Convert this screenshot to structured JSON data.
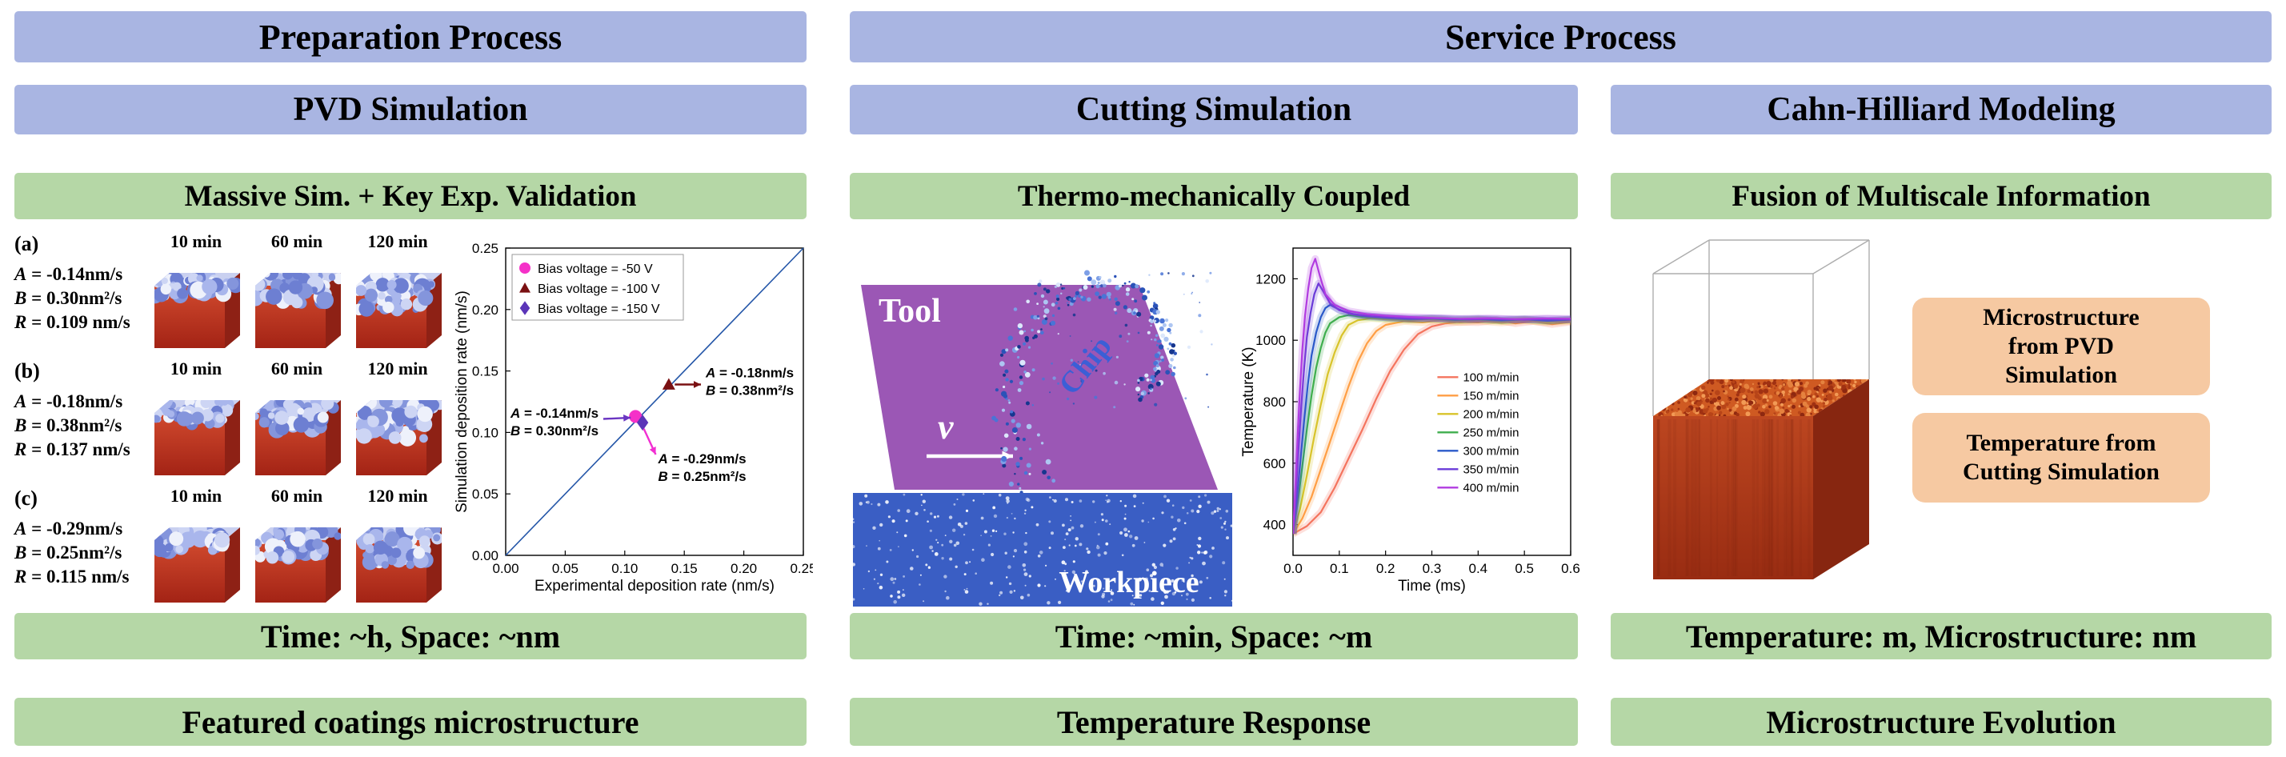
{
  "colors": {
    "blue_banner": "#a9b5e2",
    "green_banner": "#b5d7a6",
    "orange_box": "#f6c9a2",
    "tool_purple": "#9b57b5",
    "workpiece_blue": "#3a5ec4",
    "cube_red": "#c23524",
    "cahn_orange": "#cf5a22"
  },
  "headers": {
    "preparation": "Preparation Process",
    "service": "Service Process"
  },
  "columns": {
    "pvd": {
      "title": "PVD Simulation",
      "subtitle": "Massive Sim. + Key Exp. Validation",
      "scale_note": "Time: ~h, Space: ~nm",
      "footer": "Featured coatings microstructure",
      "panels": [
        {
          "label": "(a)",
          "params": [
            "A = -0.14nm/s",
            "B = 0.30nm²/s",
            "R = 0.109 nm/s"
          ],
          "times": [
            "10 min",
            "60 min",
            "120 min"
          ]
        },
        {
          "label": "(b)",
          "params": [
            "A = -0.18nm/s",
            "B = 0.38nm²/s",
            "R = 0.137 nm/s"
          ],
          "times": [
            "10 min",
            "60 min",
            "120 min"
          ]
        },
        {
          "label": "(c)",
          "params": [
            "A = -0.29nm/s",
            "B = 0.25nm²/s",
            "R = 0.115 nm/s"
          ],
          "times": [
            "10 min",
            "60 min",
            "120 min"
          ]
        }
      ]
    },
    "cutting": {
      "title": "Cutting Simulation",
      "subtitle": "Thermo-mechanically Coupled",
      "scale_note": "Time: ~min, Space: ~m",
      "footer": "Temperature Response",
      "labels": {
        "tool": "Tool",
        "velocity": "v",
        "chip": "Chip",
        "workpiece": "Workpiece"
      }
    },
    "cahn": {
      "title": "Cahn-Hilliard Modeling",
      "subtitle": "Fusion of Multiscale Information",
      "scale_note": "Temperature: m, Microstructure: nm",
      "footer": "Microstructure Evolution",
      "info_boxes": [
        {
          "lines": [
            "Microstructure",
            "from PVD",
            "Simulation"
          ]
        },
        {
          "lines": [
            "Temperature from",
            "Cutting Simulation"
          ]
        }
      ]
    }
  },
  "chart_data": [
    {
      "id": "deposition_rate_validation",
      "type": "scatter",
      "xlabel": "Experimental deposition rate (nm/s)",
      "ylabel": "Simulation deposition rate (nm/s)",
      "xlim": [
        0,
        0.25
      ],
      "ylim": [
        0,
        0.25
      ],
      "xticks": [
        0,
        0.05,
        0.1,
        0.15,
        0.2,
        0.25
      ],
      "yticks": [
        0,
        0.05,
        0.1,
        0.15,
        0.2,
        0.25
      ],
      "grid": false,
      "identity_line": {
        "color": "#2456a8"
      },
      "legend": {
        "position": "top-left",
        "border": true,
        "entries": [
          {
            "label": "Bias voltage = -50 V",
            "marker": "circle",
            "color": "#f531c8"
          },
          {
            "label": "Bias voltage = -100 V",
            "marker": "triangle",
            "color": "#7a1012"
          },
          {
            "label": "Bias voltage = -150 V",
            "marker": "diamond",
            "color": "#5b35b8"
          }
        ]
      },
      "series": [
        {
          "name": "Bias voltage = -50 V",
          "marker": "circle",
          "color": "#f531c8",
          "points": [
            [
              0.109,
              0.113
            ]
          ]
        },
        {
          "name": "Bias voltage = -100 V",
          "marker": "triangle",
          "color": "#7a1012",
          "points": [
            [
              0.137,
              0.139
            ]
          ]
        },
        {
          "name": "Bias voltage = -150 V",
          "marker": "diamond",
          "color": "#5b35b8",
          "points": [
            [
              0.115,
              0.108
            ]
          ]
        }
      ],
      "annotations": [
        {
          "lines": [
            "A = -0.14nm/s",
            "B = 0.30nm²/s"
          ],
          "text_xy": [
            0.004,
            0.112
          ],
          "anchor": "start",
          "arrow": {
            "from": [
              0.082,
              0.111
            ],
            "to": [
              0.105,
              0.112
            ],
            "color": "#6a35c2"
          }
        },
        {
          "lines": [
            "A = -0.18nm/s",
            "B = 0.38nm²/s"
          ],
          "text_xy": [
            0.168,
            0.145
          ],
          "anchor": "start",
          "arrow": {
            "from": [
              0.142,
              0.139
            ],
            "to": [
              0.164,
              0.139
            ],
            "color": "#7a1012"
          }
        },
        {
          "lines": [
            "A = -0.29nm/s",
            "B = 0.25nm²/s"
          ],
          "text_xy": [
            0.128,
            0.075
          ],
          "anchor": "start",
          "arrow": {
            "from": [
              0.116,
              0.103
            ],
            "to": [
              0.126,
              0.082
            ],
            "color": "#f12fd2"
          }
        }
      ]
    },
    {
      "id": "temperature_response",
      "type": "line",
      "xlabel": "Time (ms)",
      "ylabel": "Temperature (K)",
      "xlim": [
        0,
        0.6
      ],
      "ylim": [
        300,
        1300
      ],
      "xticks": [
        0,
        0.1,
        0.2,
        0.3,
        0.4,
        0.5,
        0.6
      ],
      "yticks": [
        400,
        600,
        800,
        1000,
        1200
      ],
      "legend": {
        "position": "right-center",
        "border": false,
        "entries": [
          {
            "label": "100 m/min",
            "color": "#f4745e"
          },
          {
            "label": "150 m/min",
            "color": "#ff9e44"
          },
          {
            "label": "200 m/min",
            "color": "#d8c32a"
          },
          {
            "label": "250 m/min",
            "color": "#3fae4e"
          },
          {
            "label": "300 m/min",
            "color": "#2a59c9"
          },
          {
            "label": "350 m/min",
            "color": "#6a3bd8"
          },
          {
            "label": "400 m/min",
            "color": "#b13be0"
          }
        ]
      },
      "series": [
        {
          "name": "100 m/min",
          "color": "#f4745e",
          "points": [
            [
              0,
              370
            ],
            [
              0.03,
              395
            ],
            [
              0.06,
              440
            ],
            [
              0.09,
              520
            ],
            [
              0.12,
              615
            ],
            [
              0.15,
              710
            ],
            [
              0.18,
              810
            ],
            [
              0.21,
              900
            ],
            [
              0.24,
              970
            ],
            [
              0.27,
              1020
            ],
            [
              0.3,
              1045
            ],
            [
              0.33,
              1055
            ],
            [
              0.36,
              1060
            ],
            [
              0.4,
              1058
            ],
            [
              0.44,
              1066
            ],
            [
              0.48,
              1055
            ],
            [
              0.52,
              1062
            ],
            [
              0.56,
              1052
            ],
            [
              0.6,
              1060
            ]
          ]
        },
        {
          "name": "150 m/min",
          "color": "#ff9e44",
          "points": [
            [
              0,
              370
            ],
            [
              0.02,
              420
            ],
            [
              0.04,
              490
            ],
            [
              0.06,
              580
            ],
            [
              0.08,
              670
            ],
            [
              0.1,
              760
            ],
            [
              0.12,
              850
            ],
            [
              0.14,
              930
            ],
            [
              0.16,
              990
            ],
            [
              0.18,
              1030
            ],
            [
              0.2,
              1050
            ],
            [
              0.24,
              1062
            ],
            [
              0.28,
              1058
            ],
            [
              0.32,
              1065
            ],
            [
              0.36,
              1058
            ],
            [
              0.4,
              1063
            ],
            [
              0.45,
              1057
            ],
            [
              0.5,
              1064
            ],
            [
              0.55,
              1058
            ],
            [
              0.6,
              1062
            ]
          ]
        },
        {
          "name": "200 m/min",
          "color": "#d8c32a",
          "points": [
            [
              0,
              370
            ],
            [
              0.015,
              450
            ],
            [
              0.03,
              560
            ],
            [
              0.045,
              680
            ],
            [
              0.06,
              790
            ],
            [
              0.075,
              890
            ],
            [
              0.09,
              960
            ],
            [
              0.105,
              1015
            ],
            [
              0.12,
              1050
            ],
            [
              0.14,
              1065
            ],
            [
              0.17,
              1072
            ],
            [
              0.2,
              1068
            ],
            [
              0.25,
              1065
            ],
            [
              0.3,
              1068
            ],
            [
              0.35,
              1063
            ],
            [
              0.4,
              1067
            ],
            [
              0.45,
              1062
            ],
            [
              0.5,
              1066
            ],
            [
              0.55,
              1061
            ],
            [
              0.6,
              1065
            ]
          ]
        },
        {
          "name": "250 m/min",
          "color": "#3fae4e",
          "points": [
            [
              0,
              370
            ],
            [
              0.01,
              470
            ],
            [
              0.02,
              590
            ],
            [
              0.03,
              710
            ],
            [
              0.04,
              820
            ],
            [
              0.05,
              910
            ],
            [
              0.06,
              975
            ],
            [
              0.07,
              1025
            ],
            [
              0.08,
              1055
            ],
            [
              0.1,
              1075
            ],
            [
              0.12,
              1082
            ],
            [
              0.15,
              1076
            ],
            [
              0.2,
              1072
            ],
            [
              0.25,
              1068
            ],
            [
              0.3,
              1070
            ],
            [
              0.35,
              1066
            ],
            [
              0.4,
              1068
            ],
            [
              0.45,
              1064
            ],
            [
              0.5,
              1068
            ],
            [
              0.55,
              1063
            ],
            [
              0.6,
              1067
            ]
          ]
        },
        {
          "name": "300 m/min",
          "color": "#2a59c9",
          "points": [
            [
              0,
              370
            ],
            [
              0.008,
              480
            ],
            [
              0.016,
              610
            ],
            [
              0.024,
              740
            ],
            [
              0.032,
              855
            ],
            [
              0.04,
              950
            ],
            [
              0.05,
              1025
            ],
            [
              0.06,
              1075
            ],
            [
              0.07,
              1105
            ],
            [
              0.08,
              1115
            ],
            [
              0.1,
              1100
            ],
            [
              0.12,
              1088
            ],
            [
              0.15,
              1080
            ],
            [
              0.2,
              1074
            ],
            [
              0.25,
              1070
            ],
            [
              0.3,
              1072
            ],
            [
              0.35,
              1068
            ],
            [
              0.4,
              1070
            ],
            [
              0.45,
              1066
            ],
            [
              0.5,
              1069
            ],
            [
              0.55,
              1064
            ],
            [
              0.6,
              1068
            ]
          ]
        },
        {
          "name": "350 m/min",
          "color": "#6a3bd8",
          "points": [
            [
              0,
              370
            ],
            [
              0.006,
              500
            ],
            [
              0.012,
              650
            ],
            [
              0.018,
              790
            ],
            [
              0.024,
              910
            ],
            [
              0.03,
              1010
            ],
            [
              0.038,
              1090
            ],
            [
              0.046,
              1150
            ],
            [
              0.055,
              1185
            ],
            [
              0.065,
              1160
            ],
            [
              0.08,
              1120
            ],
            [
              0.1,
              1098
            ],
            [
              0.13,
              1085
            ],
            [
              0.17,
              1078
            ],
            [
              0.22,
              1073
            ],
            [
              0.27,
              1070
            ],
            [
              0.32,
              1072
            ],
            [
              0.38,
              1068
            ],
            [
              0.44,
              1070
            ],
            [
              0.5,
              1067
            ],
            [
              0.55,
              1070
            ],
            [
              0.6,
              1068
            ]
          ]
        },
        {
          "name": "400 m/min",
          "color": "#b13be0",
          "points": [
            [
              0,
              370
            ],
            [
              0.005,
              520
            ],
            [
              0.01,
              690
            ],
            [
              0.015,
              840
            ],
            [
              0.02,
              970
            ],
            [
              0.026,
              1080
            ],
            [
              0.033,
              1170
            ],
            [
              0.04,
              1235
            ],
            [
              0.048,
              1265
            ],
            [
              0.058,
              1210
            ],
            [
              0.07,
              1150
            ],
            [
              0.09,
              1115
            ],
            [
              0.12,
              1095
            ],
            [
              0.16,
              1085
            ],
            [
              0.2,
              1080
            ],
            [
              0.25,
              1076
            ],
            [
              0.3,
              1073
            ],
            [
              0.36,
              1070
            ],
            [
              0.42,
              1072
            ],
            [
              0.48,
              1069
            ],
            [
              0.54,
              1071
            ],
            [
              0.6,
              1070
            ]
          ]
        }
      ]
    }
  ]
}
